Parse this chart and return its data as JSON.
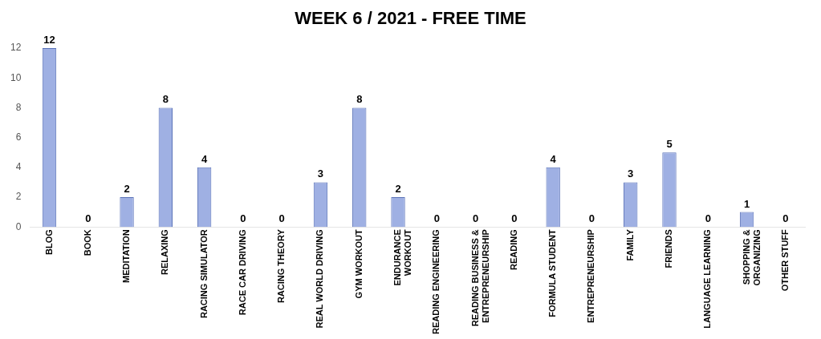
{
  "chart_data": {
    "type": "bar",
    "title": "WEEK 6 / 2021  - FREE TIME",
    "categories": [
      "BLOG",
      "BOOK",
      "MEDITATION",
      "RELAXING",
      "RACING SIMULATOR",
      "RACE CAR DRIVING",
      "RACING THEORY",
      "REAL WORLD DRIVING",
      "GYM WORKOUT",
      "ENDURANCE\nWORKOUT",
      "READING ENGINEERING",
      "READING BUSINESS &\nENTREPRENEURSHIP",
      "READING",
      "FORMULA STUDENT",
      "ENTREPRENEURSHIP",
      "FAMILY",
      "FRIENDS",
      "LANGUAGE LEARNING",
      "SHOPPING &\nORGANIZING",
      "OTHER STUFF"
    ],
    "values": [
      12,
      0,
      2,
      8,
      4,
      0,
      0,
      3,
      8,
      2,
      0,
      0,
      0,
      4,
      0,
      3,
      5,
      0,
      1,
      0
    ],
    "color": "#9fb0e3",
    "ylim": [
      0,
      12
    ],
    "yticks": [
      0,
      2,
      4,
      6,
      8,
      10,
      12
    ],
    "grid": false,
    "data_labels": true
  }
}
